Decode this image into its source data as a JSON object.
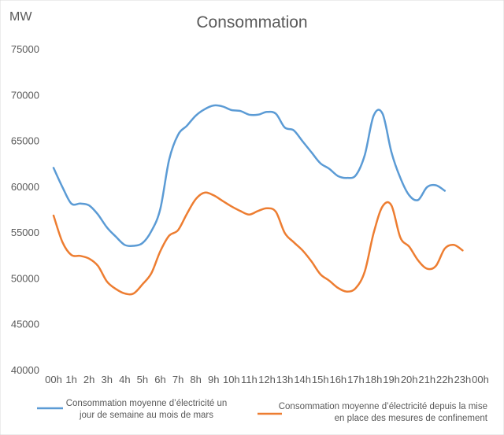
{
  "chart_data": {
    "type": "line",
    "title": "Consommation",
    "ylabel": "MW",
    "xlabel": "",
    "ylim": [
      40000,
      75000
    ],
    "y_ticks": [
      40000,
      45000,
      50000,
      55000,
      60000,
      65000,
      70000,
      75000
    ],
    "grid": false,
    "legend_position": "bottom",
    "x_ticks": [
      "00h",
      "1h",
      "2h",
      "3h",
      "4h",
      "5h",
      "6h",
      "7h",
      "8h",
      "9h",
      "10h",
      "11h",
      "12h",
      "13h",
      "14h",
      "15h",
      "16h",
      "17h",
      "18h",
      "19h",
      "20h",
      "21h",
      "22h",
      "23h",
      "00h"
    ],
    "x": [
      0,
      0.5,
      1,
      1.5,
      2,
      2.5,
      3,
      3.5,
      4,
      4.5,
      5,
      5.5,
      6,
      6.5,
      7,
      7.5,
      8,
      8.5,
      9,
      9.5,
      10,
      10.5,
      11,
      11.5,
      12,
      12.5,
      13,
      13.5,
      14,
      14.5,
      15,
      15.5,
      16,
      16.5,
      17,
      17.5,
      18,
      18.5,
      19,
      19.5,
      20,
      20.5,
      21,
      21.5,
      22,
      22.5,
      23,
      23.5,
      24
    ],
    "series": [
      {
        "name": "Consommation moyenne d’électricité un jour de semaine au mois de mars",
        "color": "#5B9BD5",
        "values": [
          62100,
          60000,
          58200,
          58200,
          58000,
          57000,
          55600,
          54600,
          53700,
          53600,
          53900,
          55200,
          57600,
          63000,
          65700,
          66700,
          67800,
          68500,
          68900,
          68800,
          68400,
          68300,
          67900,
          67900,
          68200,
          68000,
          66500,
          66200,
          65000,
          63800,
          62600,
          62000,
          61200,
          61000,
          61300,
          63500,
          67800,
          68000,
          63800,
          61000,
          59100,
          58600,
          60000,
          60200,
          59600,
          null,
          null,
          null,
          null
        ]
      },
      {
        "name": "Consommation moyenne d’électricité depuis la mise en place des mesures de confinement",
        "color": "#ED7D31",
        "values": [
          56900,
          54000,
          52600,
          52500,
          52200,
          51400,
          49700,
          48900,
          48400,
          48400,
          49400,
          50600,
          53000,
          54700,
          55300,
          57100,
          58700,
          59400,
          59100,
          58500,
          57900,
          57400,
          57000,
          57400,
          57700,
          57300,
          55000,
          54000,
          53100,
          51900,
          50500,
          49800,
          49000,
          48600,
          49000,
          50800,
          55000,
          57900,
          58000,
          54500,
          53500,
          52000,
          51100,
          51400,
          53300,
          53700,
          53100,
          null,
          null
        ]
      }
    ]
  }
}
